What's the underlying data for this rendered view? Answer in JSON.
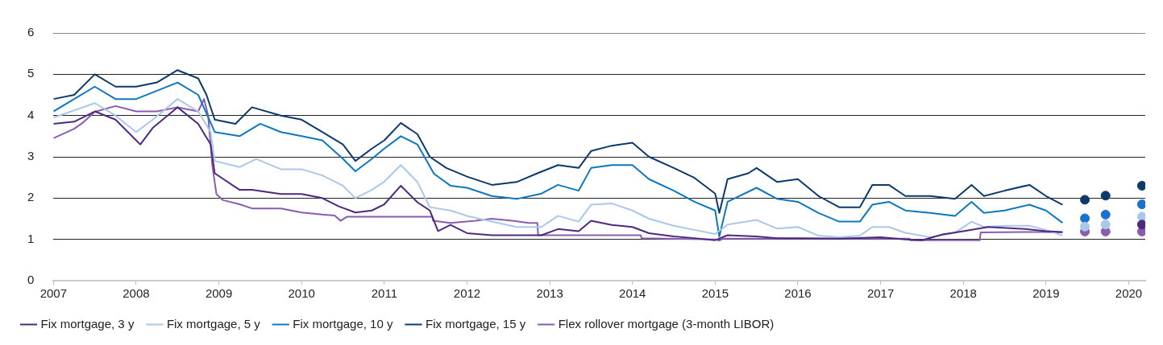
{
  "chart_data": {
    "type": "line",
    "xlim": [
      2007,
      2020.2
    ],
    "xticks": [
      2007,
      2008,
      2009,
      2010,
      2011,
      2012,
      2013,
      2014,
      2015,
      2016,
      2017,
      2018,
      2019,
      2020
    ],
    "ylim": [
      0,
      6
    ],
    "yticks": [
      0,
      1,
      2,
      3,
      4,
      5,
      6
    ],
    "grid": "y",
    "legend": "bottom",
    "marker": "none",
    "line_style": "solid",
    "series": [
      {
        "name": "Fix mortgage, 3 y",
        "color": "#4b2a7f",
        "x": [
          2007,
          2007.25,
          2007.5,
          2007.75,
          2008,
          2008.05,
          2008.2,
          2008.5,
          2008.75,
          2008.9,
          2008.95,
          2009.25,
          2009.4,
          2009.75,
          2010,
          2010.25,
          2010.45,
          2010.65,
          2010.85,
          2011,
          2011.2,
          2011.4,
          2011.55,
          2011.65,
          2011.8,
          2012,
          2012.3,
          2012.6,
          2012.9,
          2013.1,
          2013.35,
          2013.5,
          2013.75,
          2014,
          2014.2,
          2014.5,
          2014.75,
          2015,
          2015.15,
          2015.5,
          2015.75,
          2016,
          2016.5,
          2017,
          2017.3,
          2017.5,
          2017.75,
          2018,
          2018.3,
          2018.75,
          2019,
          2019.2
        ],
        "values": [
          3.8,
          3.85,
          4.1,
          3.9,
          3.4,
          3.3,
          3.7,
          4.2,
          3.8,
          3.3,
          2.6,
          2.2,
          2.2,
          2.1,
          2.1,
          2.0,
          1.8,
          1.65,
          1.7,
          1.85,
          2.3,
          1.9,
          1.7,
          1.2,
          1.35,
          1.15,
          1.1,
          1.1,
          1.1,
          1.25,
          1.2,
          1.45,
          1.35,
          1.3,
          1.15,
          1.07,
          1.03,
          0.98,
          1.1,
          1.07,
          1.03,
          1.03,
          1.02,
          1.05,
          1.0,
          0.98,
          1.12,
          1.2,
          1.3,
          1.25,
          1.2,
          1.18
        ]
      },
      {
        "name": "Fix mortgage, 5 y",
        "color": "#a9c8ea",
        "x": [
          2007,
          2007.5,
          2007.75,
          2008,
          2008.2,
          2008.5,
          2008.75,
          2008.9,
          2008.95,
          2009.25,
          2009.45,
          2009.75,
          2010,
          2010.25,
          2010.5,
          2010.65,
          2010.85,
          2011,
          2011.2,
          2011.4,
          2011.55,
          2011.8,
          2012,
          2012.3,
          2012.6,
          2012.9,
          2013.1,
          2013.35,
          2013.5,
          2013.75,
          2014,
          2014.2,
          2014.5,
          2014.75,
          2015,
          2015.15,
          2015.5,
          2015.75,
          2016,
          2016.25,
          2016.5,
          2016.75,
          2016.9,
          2017.1,
          2017.3,
          2017.6,
          2017.9,
          2018.1,
          2018.25,
          2018.5,
          2018.8,
          2019,
          2019.2
        ],
        "values": [
          3.95,
          4.3,
          4.0,
          3.6,
          3.9,
          4.4,
          4.1,
          3.6,
          2.9,
          2.75,
          2.95,
          2.7,
          2.7,
          2.55,
          2.3,
          2.0,
          2.2,
          2.4,
          2.8,
          2.39,
          1.78,
          1.7,
          1.57,
          1.43,
          1.3,
          1.3,
          1.57,
          1.43,
          1.84,
          1.87,
          1.7,
          1.5,
          1.33,
          1.23,
          1.13,
          1.36,
          1.47,
          1.26,
          1.3,
          1.09,
          1.05,
          1.09,
          1.3,
          1.3,
          1.16,
          1.05,
          1.16,
          1.43,
          1.3,
          1.33,
          1.33,
          1.23,
          1.09
        ]
      },
      {
        "name": "Fix mortgage, 10 y",
        "color": "#0b78c1",
        "x": [
          2007,
          2007.5,
          2007.75,
          2008,
          2008.5,
          2008.75,
          2008.95,
          2009.25,
          2009.5,
          2009.75,
          2010,
          2010.25,
          2010.5,
          2010.65,
          2010.85,
          2011,
          2011.2,
          2011.4,
          2011.6,
          2011.8,
          2012,
          2012.3,
          2012.6,
          2012.9,
          2013.1,
          2013.35,
          2013.5,
          2013.75,
          2014,
          2014.2,
          2014.5,
          2014.75,
          2015,
          2015.05,
          2015.15,
          2015.5,
          2015.75,
          2016,
          2016.25,
          2016.5,
          2016.75,
          2016.9,
          2017.1,
          2017.3,
          2017.6,
          2017.9,
          2018.1,
          2018.25,
          2018.5,
          2018.8,
          2019,
          2019.2
        ],
        "values": [
          4.1,
          4.7,
          4.4,
          4.4,
          4.8,
          4.5,
          3.6,
          3.5,
          3.8,
          3.6,
          3.5,
          3.4,
          2.95,
          2.65,
          2.95,
          3.2,
          3.5,
          3.3,
          2.59,
          2.3,
          2.25,
          2.05,
          1.98,
          2.11,
          2.32,
          2.18,
          2.73,
          2.8,
          2.8,
          2.46,
          2.18,
          1.91,
          1.7,
          1.07,
          1.91,
          2.25,
          1.98,
          1.91,
          1.64,
          1.43,
          1.43,
          1.84,
          1.91,
          1.7,
          1.64,
          1.57,
          1.91,
          1.64,
          1.7,
          1.84,
          1.7,
          1.4
        ]
      },
      {
        "name": "Fix mortgage, 15 y",
        "color": "#0b3a6b",
        "x": [
          2007,
          2007.25,
          2007.5,
          2007.75,
          2008,
          2008.25,
          2008.5,
          2008.75,
          2008.85,
          2008.95,
          2009.2,
          2009.4,
          2009.75,
          2010,
          2010.25,
          2010.5,
          2010.65,
          2010.85,
          2011,
          2011.2,
          2011.4,
          2011.55,
          2011.75,
          2012,
          2012.3,
          2012.6,
          2012.85,
          2013.1,
          2013.35,
          2013.5,
          2013.75,
          2014,
          2014.2,
          2014.5,
          2014.75,
          2015,
          2015.05,
          2015.15,
          2015.4,
          2015.5,
          2015.75,
          2016,
          2016.25,
          2016.5,
          2016.75,
          2016.9,
          2017.1,
          2017.3,
          2017.6,
          2017.9,
          2018.1,
          2018.25,
          2018.5,
          2018.8,
          2019,
          2019.2
        ],
        "values": [
          4.4,
          4.5,
          5.0,
          4.7,
          4.7,
          4.8,
          5.1,
          4.9,
          4.5,
          3.9,
          3.8,
          4.2,
          4.0,
          3.9,
          3.6,
          3.3,
          2.9,
          3.2,
          3.4,
          3.82,
          3.55,
          3.0,
          2.73,
          2.52,
          2.32,
          2.39,
          2.6,
          2.8,
          2.73,
          3.14,
          3.27,
          3.34,
          3.0,
          2.73,
          2.49,
          2.11,
          1.64,
          2.46,
          2.6,
          2.73,
          2.39,
          2.46,
          2.05,
          1.78,
          1.78,
          2.32,
          2.32,
          2.05,
          2.05,
          1.98,
          2.32,
          2.05,
          2.18,
          2.32,
          2.05,
          1.84
        ]
      },
      {
        "name": "Flex rollover mortgage (3-month LIBOR)",
        "color": "#8a5cb0",
        "x": [
          2007,
          2007.25,
          2007.35,
          2007.5,
          2007.75,
          2008,
          2008.25,
          2008.5,
          2008.75,
          2008.82,
          2008.87,
          2008.92,
          2008.97,
          2009.05,
          2009.25,
          2009.4,
          2009.75,
          2010,
          2010.25,
          2010.4,
          2010.47,
          2010.55,
          2011,
          2011.58,
          2011.59,
          2011.8,
          2012.1,
          2012.3,
          2012.55,
          2012.75,
          2012.85,
          2012.86,
          2013.5,
          2014.1,
          2014.11,
          2015,
          2015.05,
          2015.1,
          2017.35,
          2017.36,
          2018.2,
          2018.21,
          2019,
          2019.2
        ],
        "values": [
          3.45,
          3.68,
          3.82,
          4.09,
          4.23,
          4.1,
          4.1,
          4.2,
          4.1,
          4.4,
          4.0,
          2.8,
          2.1,
          1.95,
          1.85,
          1.75,
          1.75,
          1.65,
          1.6,
          1.58,
          1.45,
          1.55,
          1.55,
          1.55,
          1.45,
          1.4,
          1.45,
          1.5,
          1.45,
          1.4,
          1.4,
          1.1,
          1.1,
          1.1,
          1.03,
          1.0,
          0.97,
          1.02,
          1.02,
          0.98,
          0.98,
          1.17,
          1.18,
          1.17
        ]
      },
      {
        "type": "scatter",
        "marker": "circle",
        "color": "#4b2a7f",
        "x": [
          2020.16
        ],
        "values": [
          1.36
        ]
      },
      {
        "type": "scatter",
        "marker": "circle",
        "color": "#a9c8ea",
        "x": [
          2019.47,
          2019.72,
          2020.16
        ],
        "values": [
          1.31,
          1.36,
          1.55
        ]
      },
      {
        "type": "scatter",
        "marker": "circle",
        "color": "#1a72d0",
        "x": [
          2019.47,
          2019.72,
          2020.16
        ],
        "values": [
          1.51,
          1.6,
          1.85
        ]
      },
      {
        "type": "scatter",
        "marker": "circle",
        "color": "#0b3a6b",
        "x": [
          2019.47,
          2019.72,
          2020.16
        ],
        "values": [
          1.96,
          2.06,
          2.3
        ]
      },
      {
        "type": "scatter",
        "marker": "circle",
        "color": "#8a5cb0",
        "x": [
          2019.47,
          2019.72,
          2020.16
        ],
        "values": [
          1.19,
          1.19,
          1.19
        ]
      }
    ]
  }
}
